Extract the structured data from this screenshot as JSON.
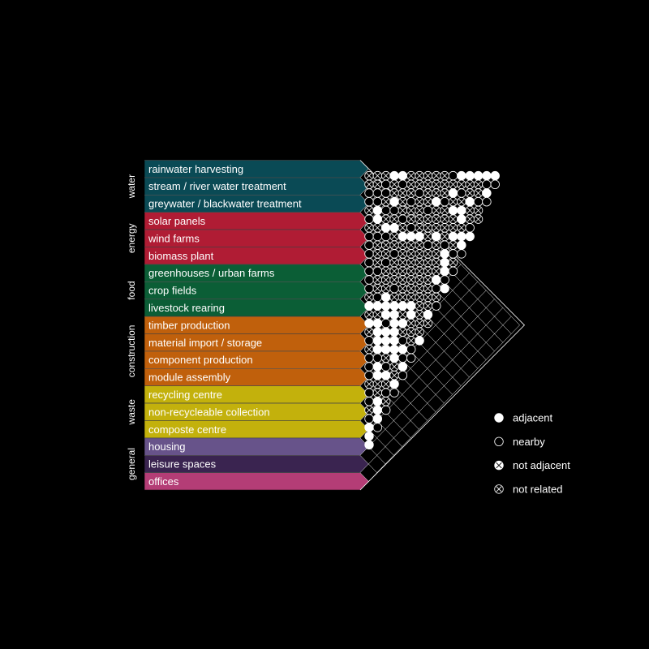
{
  "groups": [
    {
      "name": "water",
      "color": "#0a4a55",
      "rows": [
        "rainwater harvesting",
        "stream / river water treatment",
        "greywater / blackwater treatment"
      ]
    },
    {
      "name": "energy",
      "color": "#b01c34",
      "rows": [
        "solar panels",
        "wind farms",
        "biomass plant"
      ]
    },
    {
      "name": "food",
      "color": "#0b5e36",
      "rows": [
        "greenhouses / urban farms",
        "crop fields",
        "livestock rearing"
      ]
    },
    {
      "name": "construction",
      "color": "#c0600c",
      "rows": [
        "timber production",
        "material import / storage",
        "component production",
        "module assembly"
      ]
    },
    {
      "name": "waste",
      "color": "#c3b10c",
      "rows": [
        "recycling centre",
        "non-recycleable collection",
        "composte centre"
      ]
    },
    {
      "name": "general",
      "colors": [
        "#67538a",
        "#3a2450",
        "#b43d76"
      ],
      "rows": [
        "housing",
        "leisure spaces",
        "offices"
      ]
    }
  ],
  "legend": [
    {
      "key": "adjacent",
      "label": "adjacent"
    },
    {
      "key": "nearby",
      "label": "nearby"
    },
    {
      "key": "not_adjacent",
      "label": "not adjacent"
    },
    {
      "key": "not_related",
      "label": "not related"
    }
  ],
  "matrix_codes": [
    "X",
    "XX",
    "NXX",
    "NNNA",
    "XNNXA",
    "NAXXNX",
    "XANAXXX",
    "NXXNXXXX",
    "NNAXXNNXX",
    "NXNANXXXXX",
    "NXXXXXXXXXN",
    "NXXXANXNAXXA",
    "NNNNXAXXXNAXA",
    "NXXXXXAXXXXNXA",
    "XXXXXXXXXXAXXXA",
    "ANXXXXXNAXXAAXNA",
    "XAANXXXXXXXAXNAN",
    "AXAXXXXXXNAXXXN",
    "XAAAXXXXXAXANX",
    "NANAAXXXXANAA",
    "XAAAXAXXAAXN",
    "NAAAAAXXNNN",
    "NNAAXXXXXA",
    "NAXANXXAN",
    "XANAAXXX",
    "NXAXNNA",
    "NXXXAN",
    "XANAN",
    "NAXN",
    "AAN",
    "AN",
    "A"
  ]
}
